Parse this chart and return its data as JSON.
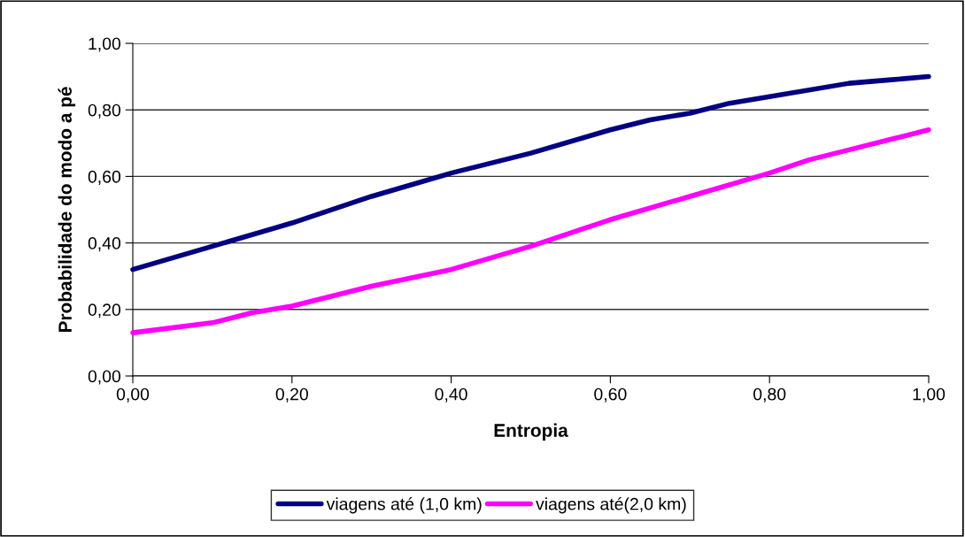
{
  "chart_data": {
    "type": "line",
    "xlabel": "Entropia",
    "ylabel": "Probabilidade do modo a pé",
    "xlim": [
      0,
      1
    ],
    "ylim": [
      0,
      1
    ],
    "xticks": [
      {
        "value": 0,
        "label": "0,00"
      },
      {
        "value": 0.2,
        "label": "0,20"
      },
      {
        "value": 0.4,
        "label": "0,40"
      },
      {
        "value": 0.6,
        "label": "0,60"
      },
      {
        "value": 0.8,
        "label": "0,80"
      },
      {
        "value": 1,
        "label": "1,00"
      }
    ],
    "yticks": [
      {
        "value": 0,
        "label": "0,00"
      },
      {
        "value": 0.2,
        "label": "0,20"
      },
      {
        "value": 0.4,
        "label": "0,40"
      },
      {
        "value": 0.6,
        "label": "0,60"
      },
      {
        "value": 0.8,
        "label": "0,80"
      },
      {
        "value": 1,
        "label": "1,00"
      }
    ],
    "grid": "y",
    "legend": "bottom",
    "marker": "none",
    "line_style": "solid",
    "series": [
      {
        "name": "viagens até (1,0 km)",
        "color": "#000080",
        "x": [
          0,
          0.1,
          0.2,
          0.3,
          0.4,
          0.5,
          0.6,
          0.65,
          0.7,
          0.75,
          0.8,
          0.9,
          0.95,
          1.0
        ],
        "values": [
          0.32,
          0.39,
          0.46,
          0.54,
          0.61,
          0.67,
          0.74,
          0.77,
          0.79,
          0.82,
          0.84,
          0.88,
          0.89,
          0.9
        ]
      },
      {
        "name": "viagens até(2,0 km)",
        "color": "#ff00ff",
        "x": [
          0,
          0.1,
          0.15,
          0.2,
          0.3,
          0.4,
          0.5,
          0.6,
          0.7,
          0.8,
          0.85,
          0.9,
          0.95,
          1.0
        ],
        "values": [
          0.13,
          0.16,
          0.19,
          0.21,
          0.27,
          0.32,
          0.39,
          0.47,
          0.54,
          0.61,
          0.65,
          0.68,
          0.71,
          0.74
        ]
      }
    ]
  }
}
